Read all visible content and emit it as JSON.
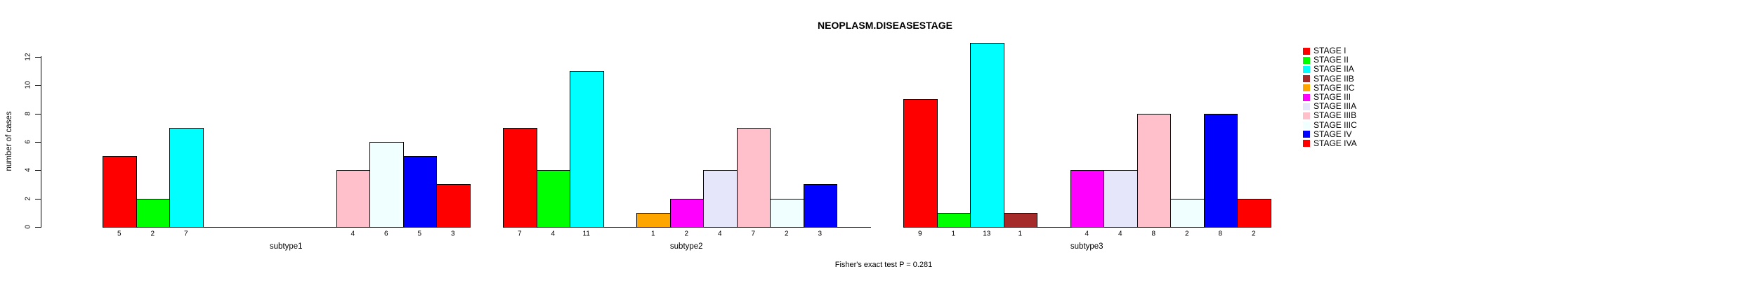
{
  "title": "NEOPLASM.DISEASESTAGE",
  "footnote": "Fisher's exact test P = 0.281",
  "chart_data": {
    "type": "bar",
    "title": "NEOPLASM.DISEASESTAGE",
    "xlabel": "",
    "ylabel": "number of cases",
    "ylim": [
      0,
      13
    ],
    "yticks": [
      0,
      2,
      4,
      6,
      8,
      10,
      12
    ],
    "grid": false,
    "legend_position": "right",
    "annotation": "Fisher's exact test P = 0.281",
    "categories": [
      "subtype1",
      "subtype2",
      "subtype3"
    ],
    "series": [
      {
        "name": "STAGE I",
        "color": "#FF0000",
        "values": [
          5,
          7,
          9
        ]
      },
      {
        "name": "STAGE II",
        "color": "#00FF00",
        "values": [
          2,
          4,
          1
        ]
      },
      {
        "name": "STAGE IIA",
        "color": "#00FFFF",
        "values": [
          7,
          11,
          13
        ]
      },
      {
        "name": "STAGE IIB",
        "color": "#A52A2A",
        "values": [
          0,
          0,
          1
        ]
      },
      {
        "name": "STAGE IIC",
        "color": "#FFA500",
        "values": [
          0,
          1,
          0
        ]
      },
      {
        "name": "STAGE III",
        "color": "#FF00FF",
        "values": [
          0,
          2,
          4
        ]
      },
      {
        "name": "STAGE IIIA",
        "color": "#E6E6FA",
        "values": [
          0,
          4,
          4
        ]
      },
      {
        "name": "STAGE IIIB",
        "color": "#FFC0CB",
        "values": [
          4,
          7,
          8
        ]
      },
      {
        "name": "STAGE IIIC",
        "color": "#F0FFFF",
        "values": [
          6,
          2,
          2
        ]
      },
      {
        "name": "STAGE IV",
        "color": "#0000FF",
        "values": [
          5,
          3,
          8
        ]
      },
      {
        "name": "STAGE IVA",
        "color": "#FF0000",
        "values": [
          3,
          0,
          2
        ]
      }
    ]
  }
}
